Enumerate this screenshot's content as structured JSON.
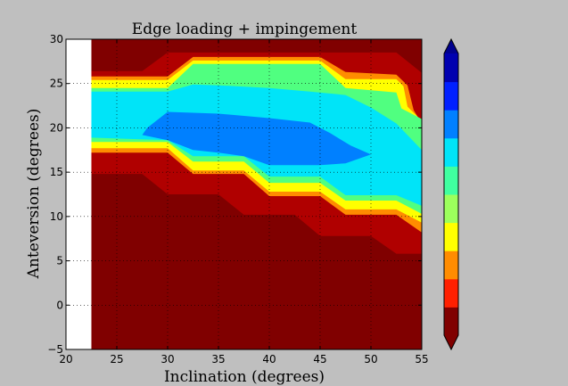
{
  "chart_data": {
    "type": "heatmap",
    "title": "Edge loading + impingement",
    "xlabel": "Inclination (degrees)",
    "ylabel": "Anteversion (degrees)",
    "xlim": [
      20,
      55
    ],
    "ylim": [
      -5,
      30
    ],
    "x_ticks": [
      "20",
      "25",
      "30",
      "35",
      "40",
      "45",
      "50",
      "55"
    ],
    "y_ticks": [
      "−5",
      "0",
      "5",
      "10",
      "15",
      "20",
      "25",
      "30"
    ],
    "x_tick_values": [
      20,
      25,
      30,
      35,
      40,
      45,
      50,
      55
    ],
    "y_tick_values": [
      -5,
      0,
      5,
      10,
      15,
      20,
      25,
      30
    ],
    "grid": true,
    "colorbar": {
      "extend": "both",
      "levels_colors": [
        "#800000",
        "#ff2000",
        "#ff8c00",
        "#ffff00",
        "#9cff5c",
        "#40ffa0",
        "#00e4f8",
        "#0080ff",
        "#0020ff",
        "#0000b0"
      ],
      "low_extend_color": "#800000",
      "high_extend_color": "#00008f"
    },
    "regions": [
      {
        "name": "background-dark-red",
        "color": "#800000",
        "polygon": [
          [
            22.5,
            -5
          ],
          [
            55,
            -5
          ],
          [
            55,
            30
          ],
          [
            22.5,
            30
          ]
        ]
      },
      {
        "name": "red-band",
        "color": "#b00000",
        "polygon": [
          [
            22.5,
            14.8
          ],
          [
            27.5,
            14.8
          ],
          [
            30,
            12.5
          ],
          [
            35,
            12.5
          ],
          [
            37.5,
            10.2
          ],
          [
            42.5,
            10.2
          ],
          [
            45,
            7.8
          ],
          [
            50,
            7.8
          ],
          [
            52.5,
            5.8
          ],
          [
            55,
            5.8
          ],
          [
            55,
            26.2
          ],
          [
            52.5,
            28.5
          ],
          [
            30,
            28.5
          ],
          [
            27.5,
            26.4
          ],
          [
            22.5,
            26.4
          ]
        ]
      },
      {
        "name": "orange-band",
        "color": "#ff8c00",
        "polygon": [
          [
            22.5,
            17.2
          ],
          [
            30,
            17.2
          ],
          [
            32.5,
            14.8
          ],
          [
            37.5,
            14.8
          ],
          [
            40,
            12.3
          ],
          [
            45,
            12.3
          ],
          [
            47.5,
            10.2
          ],
          [
            52.5,
            10.2
          ],
          [
            55,
            8.2
          ],
          [
            55,
            20.5
          ],
          [
            54.2,
            22
          ],
          [
            53.6,
            24.8
          ],
          [
            52.5,
            26
          ],
          [
            47.5,
            26.3
          ],
          [
            45,
            28
          ],
          [
            32.5,
            28
          ],
          [
            30,
            25.8
          ],
          [
            22.5,
            25.8
          ]
        ]
      },
      {
        "name": "yellow-band",
        "color": "#ffff00",
        "polygon": [
          [
            22.5,
            17.7
          ],
          [
            30,
            17.7
          ],
          [
            32.5,
            15.2
          ],
          [
            37.5,
            15.2
          ],
          [
            40,
            12.8
          ],
          [
            45,
            12.8
          ],
          [
            47.5,
            10.8
          ],
          [
            52.5,
            10.8
          ],
          [
            55,
            9.3
          ],
          [
            55,
            20.8
          ],
          [
            53.6,
            22.4
          ],
          [
            53.2,
            24.7
          ],
          [
            52.5,
            25.5
          ],
          [
            47.5,
            25.5
          ],
          [
            45,
            27.6
          ],
          [
            32.5,
            27.6
          ],
          [
            30,
            25.4
          ],
          [
            22.5,
            25.4
          ]
        ]
      },
      {
        "name": "green-band",
        "color": "#50ff80",
        "polygon": [
          [
            22.5,
            18.4
          ],
          [
            30,
            18.4
          ],
          [
            32.5,
            16.2
          ],
          [
            37.5,
            16.2
          ],
          [
            40,
            13.8
          ],
          [
            45,
            13.8
          ],
          [
            47.5,
            11.8
          ],
          [
            52.5,
            11.8
          ],
          [
            55,
            10.3
          ],
          [
            55,
            21
          ],
          [
            53,
            22.2
          ],
          [
            52.5,
            24
          ],
          [
            47.5,
            24.5
          ],
          [
            45,
            27.2
          ],
          [
            32.5,
            27.2
          ],
          [
            30,
            24.5
          ],
          [
            22.5,
            24.5
          ]
        ]
      },
      {
        "name": "cyan-band",
        "color": "#00e4f8",
        "polygon": [
          [
            22.5,
            18.9
          ],
          [
            30,
            18.6
          ],
          [
            32.5,
            16.8
          ],
          [
            37.5,
            16.8
          ],
          [
            40,
            14.5
          ],
          [
            45,
            14.5
          ],
          [
            47.5,
            12.4
          ],
          [
            52.5,
            12.4
          ],
          [
            55,
            11.2
          ],
          [
            55,
            17.5
          ],
          [
            52.5,
            20.5
          ],
          [
            50,
            22.3
          ],
          [
            47.5,
            23.7
          ],
          [
            44,
            24.1
          ],
          [
            40,
            24.5
          ],
          [
            35,
            24.8
          ],
          [
            32.5,
            24.9
          ],
          [
            30,
            24.1
          ],
          [
            22.5,
            24.1
          ]
        ]
      },
      {
        "name": "blue-core",
        "color": "#0080ff",
        "polygon": [
          [
            27.5,
            19.2
          ],
          [
            28,
            20
          ],
          [
            30,
            21.8
          ],
          [
            35,
            21.6
          ],
          [
            40,
            21.1
          ],
          [
            44,
            20.6
          ],
          [
            46,
            19.4
          ],
          [
            48,
            18
          ],
          [
            50,
            17
          ],
          [
            47.5,
            16
          ],
          [
            45,
            15.8
          ],
          [
            40,
            15.8
          ],
          [
            37.5,
            16.8
          ],
          [
            35,
            17.2
          ],
          [
            32.5,
            17.5
          ],
          [
            30,
            18.6
          ],
          [
            27.5,
            19.2
          ]
        ]
      }
    ]
  }
}
